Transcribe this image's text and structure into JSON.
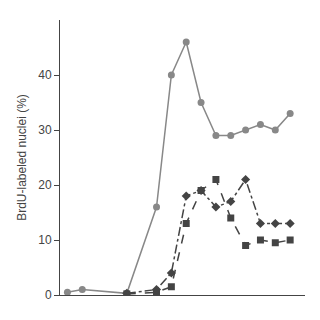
{
  "chart_data": {
    "type": "line",
    "ylabel": "BrdU-labeled nuclei (%)",
    "x": [
      0,
      2,
      8,
      12,
      14,
      16,
      18,
      20,
      22,
      24,
      26,
      28,
      30
    ],
    "series": [
      {
        "color": "#888888",
        "marker": "circle",
        "line_style": "solid",
        "values": [
          0.5,
          1.0,
          0.3,
          16,
          40,
          46,
          35,
          29,
          29,
          30,
          31,
          30,
          33
        ]
      },
      {
        "color": "#444444",
        "marker": "square",
        "line_style": "dashed",
        "values": [
          null,
          null,
          0.2,
          0.5,
          1.5,
          13,
          19,
          21,
          14,
          9,
          10,
          9.5,
          10
        ]
      },
      {
        "color": "#444444",
        "marker": "diamond",
        "line_style": "dashdot",
        "values": [
          null,
          null,
          0.3,
          1.0,
          4,
          18,
          19,
          16,
          17,
          21,
          13,
          13,
          13
        ]
      }
    ],
    "xlim": [
      -1,
      32
    ],
    "ylim": [
      0,
      50
    ],
    "yticks": [
      0,
      10,
      20,
      30,
      40
    ],
    "grid": false,
    "tick_labels": "y"
  }
}
